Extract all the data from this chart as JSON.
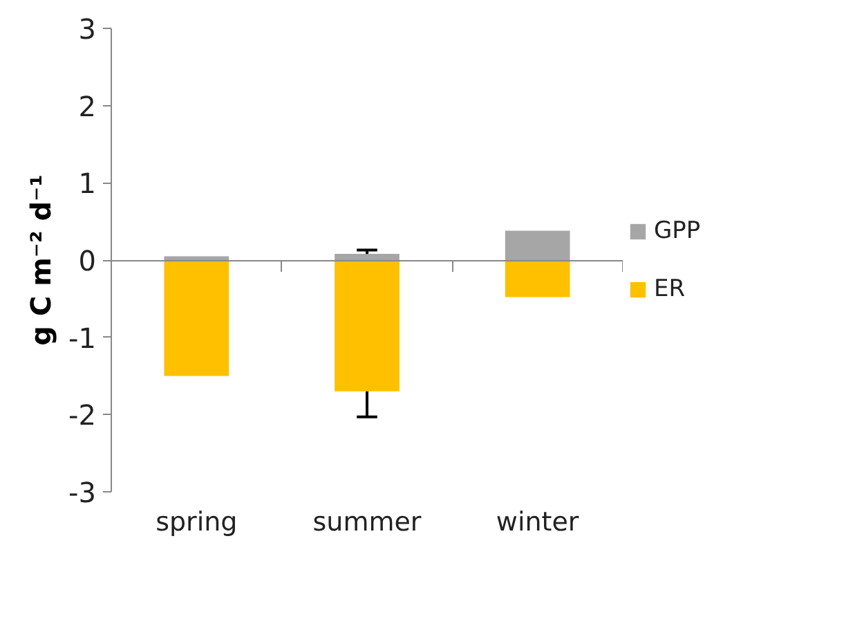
{
  "chart_data": {
    "type": "bar",
    "ylabel": "g C m⁻² d⁻¹",
    "categories": [
      "spring",
      "summer",
      "winter"
    ],
    "stacked": true,
    "series": [
      {
        "name": "GPP",
        "color": "#a6a6a6",
        "values": [
          0.05,
          0.08,
          0.38
        ],
        "errors": [
          null,
          [
            0.08,
            0.13
          ],
          null
        ]
      },
      {
        "name": "ER",
        "color": "#ffc000",
        "values": [
          -1.5,
          -1.7,
          -0.48
        ],
        "errors": [
          null,
          [
            -2.03,
            -1.7
          ],
          null
        ]
      }
    ],
    "ylim": [
      -3,
      3
    ],
    "yticks": [
      -3,
      -2,
      -1,
      0,
      1,
      2,
      3
    ],
    "legend": "right"
  }
}
